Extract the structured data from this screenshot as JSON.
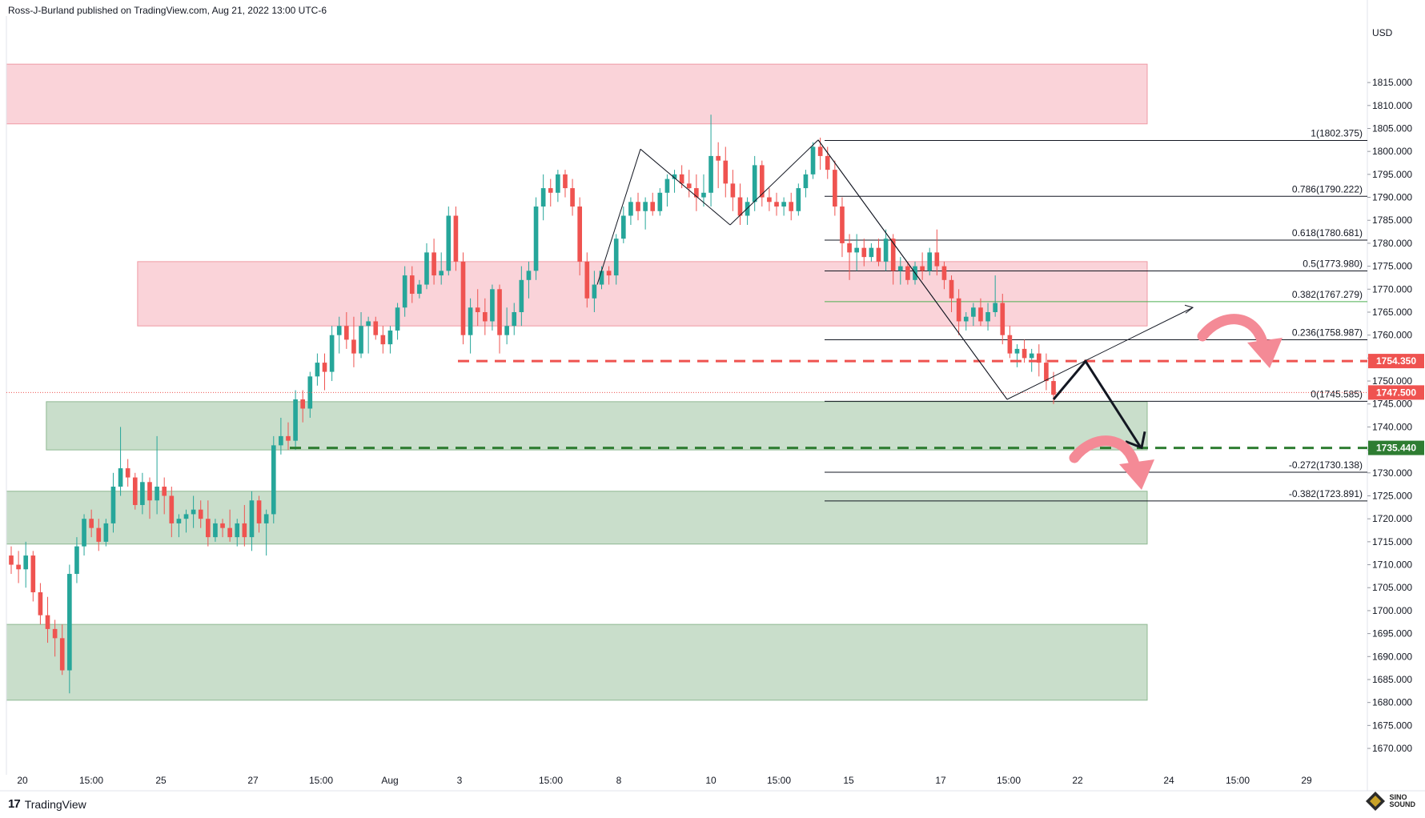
{
  "header": {
    "published_text": "Ross-J-Burland published on TradingView.com, Aug 21, 2022 13:00 UTC-6"
  },
  "footer": {
    "brand": "TradingView",
    "watermark_text_1": "SINO",
    "watermark_text_2": "SOUND"
  },
  "chart_data": {
    "type": "candlestick",
    "currency": "USD",
    "ylim": [
      1666,
      1826
    ],
    "y_ticks": [
      1815,
      1810,
      1805,
      1800,
      1795,
      1790,
      1785,
      1780,
      1775,
      1770,
      1765,
      1760,
      1755,
      1750,
      1745,
      1740,
      1735,
      1730,
      1725,
      1720,
      1715,
      1710,
      1705,
      1700,
      1695,
      1690,
      1685,
      1680,
      1675,
      1670
    ],
    "y_tick_labels": [
      "1815.000",
      "1810.000",
      "1805.000",
      "1800.000",
      "1795.000",
      "1790.000",
      "1785.000",
      "1780.000",
      "1775.000",
      "1770.000",
      "1765.000",
      "1760.000",
      "1755.000",
      "1750.000",
      "1745.000",
      "1740.000",
      "1735.000",
      "1730.000",
      "1725.000",
      "1720.000",
      "1715.000",
      "1710.000",
      "1705.000",
      "1700.000",
      "1695.000",
      "1690.000",
      "1685.000",
      "1680.000",
      "1675.000",
      "1670.000"
    ],
    "x_labels": [
      "20",
      "15:00",
      "25",
      "27",
      "15:00",
      "Aug",
      "3",
      "15:00",
      "8",
      "10",
      "15:00",
      "15",
      "17",
      "15:00",
      "22",
      "24",
      "15:00",
      "29"
    ],
    "colors": {
      "up": "#26a69a",
      "down": "#ef5350",
      "resistance_zone": "#f8bcc4",
      "support_zone": "#a5c8a8",
      "resistance_line": "#ef5350",
      "support_line": "#2e7d32",
      "fib_line": "#131722",
      "fib_382_line": "#4caf50",
      "arrow_pink": "#f48a96"
    },
    "ohlc": [
      [
        1712,
        1714,
        1708,
        1710
      ],
      [
        1710,
        1713,
        1706,
        1709
      ],
      [
        1709,
        1715,
        1705,
        1712
      ],
      [
        1712,
        1713,
        1702,
        1704
      ],
      [
        1704,
        1706,
        1697,
        1699
      ],
      [
        1699,
        1703,
        1693,
        1696
      ],
      [
        1696,
        1698,
        1690,
        1694
      ],
      [
        1694,
        1697,
        1686,
        1687
      ],
      [
        1687,
        1710,
        1682,
        1708
      ],
      [
        1708,
        1716,
        1706,
        1714
      ],
      [
        1714,
        1721,
        1712,
        1720
      ],
      [
        1720,
        1722,
        1716,
        1718
      ],
      [
        1718,
        1720,
        1713,
        1715
      ],
      [
        1715,
        1720,
        1714,
        1719
      ],
      [
        1719,
        1730,
        1717,
        1727
      ],
      [
        1727,
        1740,
        1725,
        1731
      ],
      [
        1731,
        1733,
        1727,
        1729
      ],
      [
        1729,
        1730,
        1722,
        1723
      ],
      [
        1723,
        1730,
        1721,
        1728
      ],
      [
        1728,
        1729,
        1720,
        1724
      ],
      [
        1724,
        1738,
        1721,
        1727
      ],
      [
        1727,
        1729,
        1721,
        1725
      ],
      [
        1725,
        1727,
        1716,
        1719
      ],
      [
        1719,
        1721,
        1716,
        1720
      ],
      [
        1720,
        1722,
        1717,
        1721
      ],
      [
        1721,
        1725,
        1718,
        1722
      ],
      [
        1722,
        1724,
        1718,
        1720
      ],
      [
        1720,
        1724,
        1714,
        1716
      ],
      [
        1716,
        1720,
        1715,
        1719
      ],
      [
        1719,
        1720,
        1716,
        1718
      ],
      [
        1718,
        1722,
        1715,
        1716
      ],
      [
        1716,
        1720,
        1714,
        1719
      ],
      [
        1719,
        1723,
        1714,
        1716
      ],
      [
        1716,
        1726,
        1713,
        1724
      ],
      [
        1724,
        1725,
        1717,
        1719
      ],
      [
        1719,
        1722,
        1712,
        1721
      ],
      [
        1721,
        1738,
        1719,
        1736
      ],
      [
        1736,
        1742,
        1734,
        1738
      ],
      [
        1738,
        1741,
        1735,
        1737
      ],
      [
        1737,
        1748,
        1735,
        1746
      ],
      [
        1746,
        1748,
        1741,
        1744
      ],
      [
        1744,
        1752,
        1742,
        1751
      ],
      [
        1751,
        1756,
        1749,
        1754
      ],
      [
        1754,
        1756,
        1748,
        1752
      ],
      [
        1752,
        1762,
        1750,
        1760
      ],
      [
        1760,
        1764,
        1756,
        1762
      ],
      [
        1762,
        1765,
        1757,
        1759
      ],
      [
        1759,
        1764,
        1753,
        1756
      ],
      [
        1756,
        1765,
        1755,
        1762
      ],
      [
        1762,
        1764,
        1756,
        1763
      ],
      [
        1763,
        1764,
        1759,
        1760
      ],
      [
        1760,
        1762,
        1756,
        1758
      ],
      [
        1758,
        1762,
        1756,
        1761
      ],
      [
        1761,
        1767,
        1759,
        1766
      ],
      [
        1766,
        1775,
        1764,
        1773
      ],
      [
        1773,
        1775,
        1767,
        1769
      ],
      [
        1769,
        1772,
        1768,
        1771
      ],
      [
        1771,
        1780,
        1770,
        1778
      ],
      [
        1778,
        1781,
        1771,
        1773
      ],
      [
        1773,
        1778,
        1771,
        1774
      ],
      [
        1774,
        1788,
        1773,
        1786
      ],
      [
        1786,
        1788,
        1774,
        1776
      ],
      [
        1776,
        1778,
        1758,
        1760
      ],
      [
        1760,
        1768,
        1756,
        1766
      ],
      [
        1766,
        1770,
        1762,
        1765
      ],
      [
        1765,
        1768,
        1760,
        1763
      ],
      [
        1763,
        1771,
        1761,
        1770
      ],
      [
        1770,
        1771,
        1756,
        1760
      ],
      [
        1760,
        1766,
        1758,
        1762
      ],
      [
        1762,
        1767,
        1760,
        1765
      ],
      [
        1765,
        1775,
        1762,
        1772
      ],
      [
        1772,
        1776,
        1768,
        1774
      ],
      [
        1774,
        1790,
        1772,
        1788
      ],
      [
        1788,
        1795,
        1785,
        1792
      ],
      [
        1792,
        1794,
        1788,
        1791
      ],
      [
        1791,
        1796,
        1789,
        1795
      ],
      [
        1795,
        1796,
        1790,
        1792
      ],
      [
        1792,
        1794,
        1786,
        1788
      ],
      [
        1788,
        1790,
        1773,
        1776
      ],
      [
        1776,
        1778,
        1766,
        1768
      ],
      [
        1768,
        1774,
        1765,
        1771
      ],
      [
        1771,
        1775,
        1770,
        1774
      ],
      [
        1774,
        1775,
        1771,
        1773
      ],
      [
        1773,
        1782,
        1771,
        1781
      ],
      [
        1781,
        1788,
        1780,
        1786
      ],
      [
        1786,
        1790,
        1784,
        1789
      ],
      [
        1789,
        1791,
        1785,
        1787
      ],
      [
        1787,
        1790,
        1783,
        1789
      ],
      [
        1789,
        1791,
        1786,
        1787
      ],
      [
        1787,
        1792,
        1786,
        1791
      ],
      [
        1791,
        1795,
        1788,
        1794
      ],
      [
        1794,
        1796,
        1791,
        1795
      ],
      [
        1795,
        1797,
        1792,
        1793
      ],
      [
        1793,
        1796,
        1790,
        1792
      ],
      [
        1792,
        1795,
        1787,
        1790
      ],
      [
        1790,
        1795,
        1788,
        1791
      ],
      [
        1791,
        1808,
        1788,
        1799
      ],
      [
        1799,
        1802,
        1792,
        1798
      ],
      [
        1798,
        1801,
        1790,
        1793
      ],
      [
        1793,
        1796,
        1787,
        1790
      ],
      [
        1790,
        1793,
        1784,
        1786
      ],
      [
        1786,
        1790,
        1784,
        1789
      ],
      [
        1789,
        1799,
        1787,
        1797
      ],
      [
        1797,
        1798,
        1788,
        1790
      ],
      [
        1790,
        1792,
        1787,
        1789
      ],
      [
        1789,
        1791,
        1786,
        1788
      ],
      [
        1788,
        1790,
        1786,
        1789
      ],
      [
        1789,
        1791,
        1785,
        1787
      ],
      [
        1787,
        1793,
        1786,
        1792
      ],
      [
        1792,
        1796,
        1790,
        1795
      ],
      [
        1795,
        1802,
        1794,
        1801
      ],
      [
        1801,
        1803,
        1796,
        1799
      ],
      [
        1799,
        1801,
        1794,
        1796
      ],
      [
        1796,
        1798,
        1786,
        1788
      ],
      [
        1788,
        1790,
        1777,
        1780
      ],
      [
        1780,
        1782,
        1772,
        1778
      ],
      [
        1778,
        1782,
        1774,
        1779
      ],
      [
        1779,
        1781,
        1775,
        1777
      ],
      [
        1777,
        1780,
        1776,
        1779
      ],
      [
        1779,
        1781,
        1775,
        1776
      ],
      [
        1776,
        1783,
        1774,
        1781
      ],
      [
        1781,
        1782,
        1771,
        1774
      ],
      [
        1774,
        1777,
        1771,
        1775
      ],
      [
        1775,
        1776,
        1771,
        1772
      ],
      [
        1772,
        1776,
        1771,
        1775
      ],
      [
        1775,
        1778,
        1772,
        1774
      ],
      [
        1774,
        1779,
        1773,
        1778
      ],
      [
        1778,
        1783,
        1773,
        1775
      ],
      [
        1775,
        1776,
        1770,
        1772
      ],
      [
        1772,
        1773,
        1765,
        1768
      ],
      [
        1768,
        1770,
        1760,
        1763
      ],
      [
        1763,
        1765,
        1761,
        1764
      ],
      [
        1764,
        1767,
        1762,
        1766
      ],
      [
        1766,
        1768,
        1762,
        1763
      ],
      [
        1763,
        1767,
        1761,
        1765
      ],
      [
        1765,
        1773,
        1764,
        1767
      ],
      [
        1767,
        1769,
        1758,
        1760
      ],
      [
        1760,
        1762,
        1755,
        1756
      ],
      [
        1756,
        1758,
        1753,
        1757
      ],
      [
        1757,
        1759,
        1754,
        1755
      ],
      [
        1755,
        1757,
        1752,
        1756
      ],
      [
        1756,
        1758,
        1751,
        1754
      ],
      [
        1754,
        1756,
        1748,
        1750
      ],
      [
        1750,
        1752,
        1745,
        1747
      ]
    ],
    "resistance_zones": [
      {
        "top": 1819,
        "bottom": 1806,
        "x_start": 0.0,
        "x_end": 1.0
      },
      {
        "top": 1776,
        "bottom": 1762,
        "x_start": 0.115,
        "x_end": 1.0
      }
    ],
    "support_zones": [
      {
        "top": 1745.5,
        "bottom": 1735,
        "x_start": 0.035,
        "x_end": 1.0
      },
      {
        "top": 1726,
        "bottom": 1714.5,
        "x_start": 0.0,
        "x_end": 1.0
      },
      {
        "top": 1697,
        "bottom": 1680.5,
        "x_start": 0.0,
        "x_end": 1.0
      }
    ],
    "resistance_line": {
      "price": 1754.35,
      "label": "1754.350"
    },
    "support_line": {
      "price": 1735.44,
      "label": "1735.440"
    },
    "last_price": {
      "price": 1747.5,
      "label": "1747.500"
    },
    "fib_levels": [
      {
        "price": 1802.375,
        "label": "1(1802.375)"
      },
      {
        "price": 1790.222,
        "label": "0.786(1790.222)"
      },
      {
        "price": 1780.681,
        "label": "0.618(1780.681)"
      },
      {
        "price": 1773.98,
        "label": "0.5(1773.980)"
      },
      {
        "price": 1767.279,
        "label": "0.382(1767.279)"
      },
      {
        "price": 1758.987,
        "label": "0.236(1758.987)"
      },
      {
        "price": 1745.585,
        "label": "0(1745.585)"
      },
      {
        "price": 1730.138,
        "label": "-0.272(1730.138)"
      },
      {
        "price": 1723.891,
        "label": "-0.382(1723.891)"
      }
    ]
  }
}
